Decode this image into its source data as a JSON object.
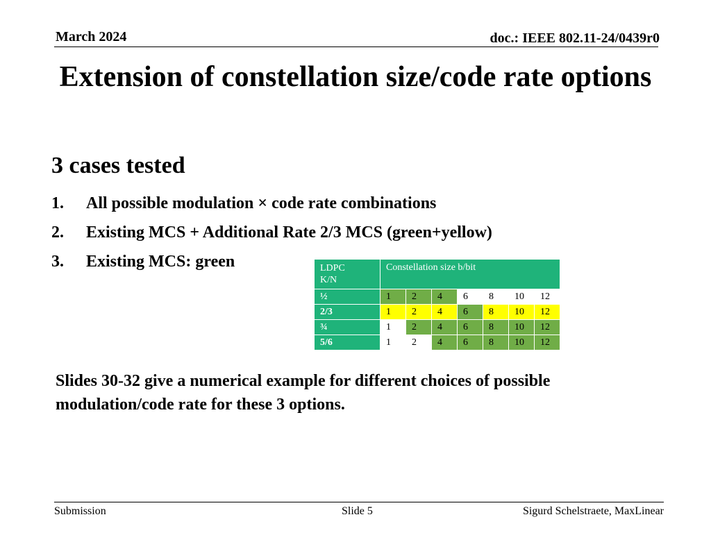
{
  "header": {
    "date": "March 2024",
    "doc": "doc.: IEEE 802.11-24/0439r0"
  },
  "title": "Extension of constellation size/code rate options",
  "subhead": "3 cases tested",
  "list": [
    {
      "num": "1.",
      "text": "All possible modulation × code rate combinations"
    },
    {
      "num": "2.",
      "text": "Existing MCS + Additional Rate 2/3 MCS (green+yellow)"
    },
    {
      "num": "3.",
      "text": "Existing MCS: green"
    }
  ],
  "table": {
    "corner": "LDPC K/N",
    "header": "Constellation size b/bit",
    "rows": [
      {
        "label": "½",
        "cells": [
          "1",
          "2",
          "4",
          "6",
          "8",
          "10",
          "12"
        ],
        "colors": [
          "green",
          "green",
          "green",
          "white",
          "white",
          "white",
          "white"
        ]
      },
      {
        "label": "2/3",
        "cells": [
          "1",
          "2",
          "4",
          "6",
          "8",
          "10",
          "12"
        ],
        "colors": [
          "yellow",
          "yellow",
          "yellow",
          "green",
          "yellow",
          "yellow",
          "yellow"
        ]
      },
      {
        "label": "¾",
        "cells": [
          "1",
          "2",
          "4",
          "6",
          "8",
          "10",
          "12"
        ],
        "colors": [
          "white",
          "green",
          "green",
          "green",
          "green",
          "green",
          "green"
        ]
      },
      {
        "label": "5/6",
        "cells": [
          "1",
          "2",
          "4",
          "6",
          "8",
          "10",
          "12"
        ],
        "colors": [
          "white",
          "white",
          "green",
          "green",
          "green",
          "green",
          "green"
        ]
      }
    ]
  },
  "note": "Slides 30-32 give a numerical example for different choices of possible modulation/code rate for these 3 options.",
  "footer": {
    "left": "Submission",
    "center": "Slide 5",
    "right": "Sigurd Schelstraete, MaxLinear"
  },
  "colors": {
    "table_header": "#1fb37a",
    "green": "#70ad47",
    "yellow": "#ffff00"
  }
}
